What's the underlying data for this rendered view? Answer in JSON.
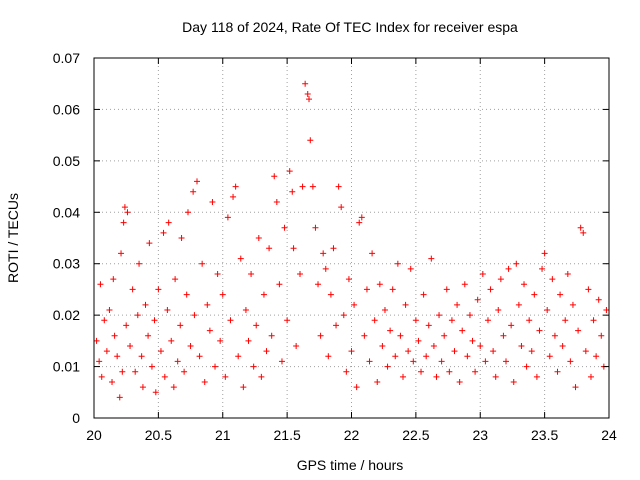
{
  "chart_data": {
    "type": "scatter",
    "title": "Day 118 of 2024, Rate Of TEC Index for receiver espa",
    "xlabel": "GPS time / hours",
    "ylabel": "ROTI / TECUs",
    "xlim": [
      20,
      24
    ],
    "ylim": [
      0,
      0.07
    ],
    "xticks": [
      "20",
      "20.5",
      "21",
      "21.5",
      "22",
      "22.5",
      "23",
      "23.5",
      "24"
    ],
    "yticks": [
      "0",
      "0.01",
      "0.02",
      "0.03",
      "0.04",
      "0.05",
      "0.06",
      "0.07"
    ],
    "grid": true,
    "marker": "+",
    "color": "#ff0000",
    "series": [
      {
        "name": "ROTI",
        "points": [
          [
            20.02,
            0.015
          ],
          [
            20.04,
            0.011
          ],
          [
            20.05,
            0.026
          ],
          [
            20.06,
            0.008
          ],
          [
            20.08,
            0.019
          ],
          [
            20.1,
            0.013
          ],
          [
            20.12,
            0.021
          ],
          [
            20.14,
            0.007
          ],
          [
            20.15,
            0.027
          ],
          [
            20.16,
            0.016
          ],
          [
            20.18,
            0.012
          ],
          [
            20.2,
            0.004
          ],
          [
            20.21,
            0.032
          ],
          [
            20.22,
            0.009
          ],
          [
            20.23,
            0.038
          ],
          [
            20.24,
            0.041
          ],
          [
            20.25,
            0.018
          ],
          [
            20.26,
            0.04
          ],
          [
            20.28,
            0.014
          ],
          [
            20.3,
            0.025
          ],
          [
            20.32,
            0.009
          ],
          [
            20.34,
            0.02
          ],
          [
            20.35,
            0.03
          ],
          [
            20.37,
            0.012
          ],
          [
            20.38,
            0.006
          ],
          [
            20.4,
            0.022
          ],
          [
            20.42,
            0.016
          ],
          [
            20.43,
            0.034
          ],
          [
            20.45,
            0.01
          ],
          [
            20.47,
            0.019
          ],
          [
            20.48,
            0.005
          ],
          [
            20.5,
            0.025
          ],
          [
            20.52,
            0.013
          ],
          [
            20.54,
            0.036
          ],
          [
            20.55,
            0.008
          ],
          [
            20.57,
            0.021
          ],
          [
            20.58,
            0.038
          ],
          [
            20.6,
            0.015
          ],
          [
            20.62,
            0.006
          ],
          [
            20.63,
            0.027
          ],
          [
            20.65,
            0.011
          ],
          [
            20.67,
            0.018
          ],
          [
            20.68,
            0.035
          ],
          [
            20.7,
            0.009
          ],
          [
            20.72,
            0.024
          ],
          [
            20.73,
            0.04
          ],
          [
            20.75,
            0.014
          ],
          [
            20.77,
            0.044
          ],
          [
            20.78,
            0.02
          ],
          [
            20.8,
            0.046
          ],
          [
            20.82,
            0.012
          ],
          [
            20.84,
            0.03
          ],
          [
            20.86,
            0.007
          ],
          [
            20.88,
            0.022
          ],
          [
            20.9,
            0.017
          ],
          [
            20.92,
            0.042
          ],
          [
            20.94,
            0.01
          ],
          [
            20.96,
            0.028
          ],
          [
            20.98,
            0.015
          ],
          [
            21.0,
            0.024
          ],
          [
            21.02,
            0.008
          ],
          [
            21.04,
            0.039
          ],
          [
            21.06,
            0.019
          ],
          [
            21.08,
            0.043
          ],
          [
            21.1,
            0.045
          ],
          [
            21.12,
            0.012
          ],
          [
            21.14,
            0.031
          ],
          [
            21.16,
            0.006
          ],
          [
            21.18,
            0.021
          ],
          [
            21.2,
            0.015
          ],
          [
            21.22,
            0.028
          ],
          [
            21.24,
            0.01
          ],
          [
            21.26,
            0.018
          ],
          [
            21.28,
            0.035
          ],
          [
            21.3,
            0.008
          ],
          [
            21.32,
            0.024
          ],
          [
            21.34,
            0.013
          ],
          [
            21.36,
            0.033
          ],
          [
            21.38,
            0.016
          ],
          [
            21.4,
            0.047
          ],
          [
            21.42,
            0.042
          ],
          [
            21.44,
            0.026
          ],
          [
            21.46,
            0.011
          ],
          [
            21.48,
            0.037
          ],
          [
            21.5,
            0.019
          ],
          [
            21.52,
            0.048
          ],
          [
            21.54,
            0.044
          ],
          [
            21.55,
            0.033
          ],
          [
            21.57,
            0.014
          ],
          [
            21.6,
            0.028
          ],
          [
            21.62,
            0.045
          ],
          [
            21.64,
            0.065
          ],
          [
            21.66,
            0.063
          ],
          [
            21.67,
            0.062
          ],
          [
            21.68,
            0.054
          ],
          [
            21.7,
            0.045
          ],
          [
            21.72,
            0.037
          ],
          [
            21.74,
            0.026
          ],
          [
            21.76,
            0.016
          ],
          [
            21.78,
            0.032
          ],
          [
            21.8,
            0.029
          ],
          [
            21.82,
            0.012
          ],
          [
            21.84,
            0.024
          ],
          [
            21.86,
            0.033
          ],
          [
            21.88,
            0.018
          ],
          [
            21.9,
            0.045
          ],
          [
            21.92,
            0.041
          ],
          [
            21.94,
            0.02
          ],
          [
            21.96,
            0.009
          ],
          [
            21.98,
            0.027
          ],
          [
            22.0,
            0.013
          ],
          [
            22.02,
            0.022
          ],
          [
            22.04,
            0.006
          ],
          [
            22.06,
            0.038
          ],
          [
            22.08,
            0.039
          ],
          [
            22.1,
            0.016
          ],
          [
            22.12,
            0.025
          ],
          [
            22.14,
            0.011
          ],
          [
            22.16,
            0.032
          ],
          [
            22.18,
            0.019
          ],
          [
            22.2,
            0.007
          ],
          [
            22.22,
            0.026
          ],
          [
            22.24,
            0.014
          ],
          [
            22.26,
            0.021
          ],
          [
            22.28,
            0.01
          ],
          [
            22.3,
            0.017
          ],
          [
            22.32,
            0.025
          ],
          [
            22.34,
            0.012
          ],
          [
            22.36,
            0.03
          ],
          [
            22.38,
            0.016
          ],
          [
            22.4,
            0.008
          ],
          [
            22.42,
            0.022
          ],
          [
            22.44,
            0.013
          ],
          [
            22.46,
            0.029
          ],
          [
            22.48,
            0.011
          ],
          [
            22.5,
            0.019
          ],
          [
            22.52,
            0.015
          ],
          [
            22.54,
            0.009
          ],
          [
            22.56,
            0.024
          ],
          [
            22.58,
            0.012
          ],
          [
            22.6,
            0.018
          ],
          [
            22.62,
            0.031
          ],
          [
            22.64,
            0.014
          ],
          [
            22.66,
            0.008
          ],
          [
            22.68,
            0.02
          ],
          [
            22.7,
            0.011
          ],
          [
            22.72,
            0.016
          ],
          [
            22.74,
            0.025
          ],
          [
            22.76,
            0.009
          ],
          [
            22.78,
            0.019
          ],
          [
            22.8,
            0.013
          ],
          [
            22.82,
            0.022
          ],
          [
            22.84,
            0.007
          ],
          [
            22.86,
            0.017
          ],
          [
            22.88,
            0.026
          ],
          [
            22.9,
            0.012
          ],
          [
            22.92,
            0.02
          ],
          [
            22.94,
            0.015
          ],
          [
            22.96,
            0.009
          ],
          [
            22.98,
            0.023
          ],
          [
            23.0,
            0.014
          ],
          [
            23.02,
            0.028
          ],
          [
            23.04,
            0.011
          ],
          [
            23.06,
            0.019
          ],
          [
            23.08,
            0.025
          ],
          [
            23.1,
            0.013
          ],
          [
            23.12,
            0.008
          ],
          [
            23.14,
            0.021
          ],
          [
            23.16,
            0.027
          ],
          [
            23.18,
            0.016
          ],
          [
            23.2,
            0.011
          ],
          [
            23.22,
            0.029
          ],
          [
            23.24,
            0.018
          ],
          [
            23.26,
            0.007
          ],
          [
            23.28,
            0.03
          ],
          [
            23.3,
            0.022
          ],
          [
            23.32,
            0.014
          ],
          [
            23.34,
            0.026
          ],
          [
            23.36,
            0.01
          ],
          [
            23.38,
            0.019
          ],
          [
            23.4,
            0.013
          ],
          [
            23.42,
            0.024
          ],
          [
            23.44,
            0.008
          ],
          [
            23.46,
            0.017
          ],
          [
            23.48,
            0.029
          ],
          [
            23.5,
            0.032
          ],
          [
            23.52,
            0.021
          ],
          [
            23.54,
            0.012
          ],
          [
            23.56,
            0.027
          ],
          [
            23.58,
            0.016
          ],
          [
            23.6,
            0.009
          ],
          [
            23.62,
            0.024
          ],
          [
            23.64,
            0.014
          ],
          [
            23.66,
            0.019
          ],
          [
            23.68,
            0.028
          ],
          [
            23.7,
            0.011
          ],
          [
            23.72,
            0.022
          ],
          [
            23.74,
            0.006
          ],
          [
            23.76,
            0.017
          ],
          [
            23.78,
            0.037
          ],
          [
            23.8,
            0.036
          ],
          [
            23.82,
            0.013
          ],
          [
            23.84,
            0.025
          ],
          [
            23.86,
            0.008
          ],
          [
            23.88,
            0.019
          ],
          [
            23.9,
            0.012
          ],
          [
            23.92,
            0.023
          ],
          [
            23.94,
            0.016
          ],
          [
            23.96,
            0.01
          ],
          [
            23.98,
            0.021
          ]
        ]
      }
    ]
  }
}
